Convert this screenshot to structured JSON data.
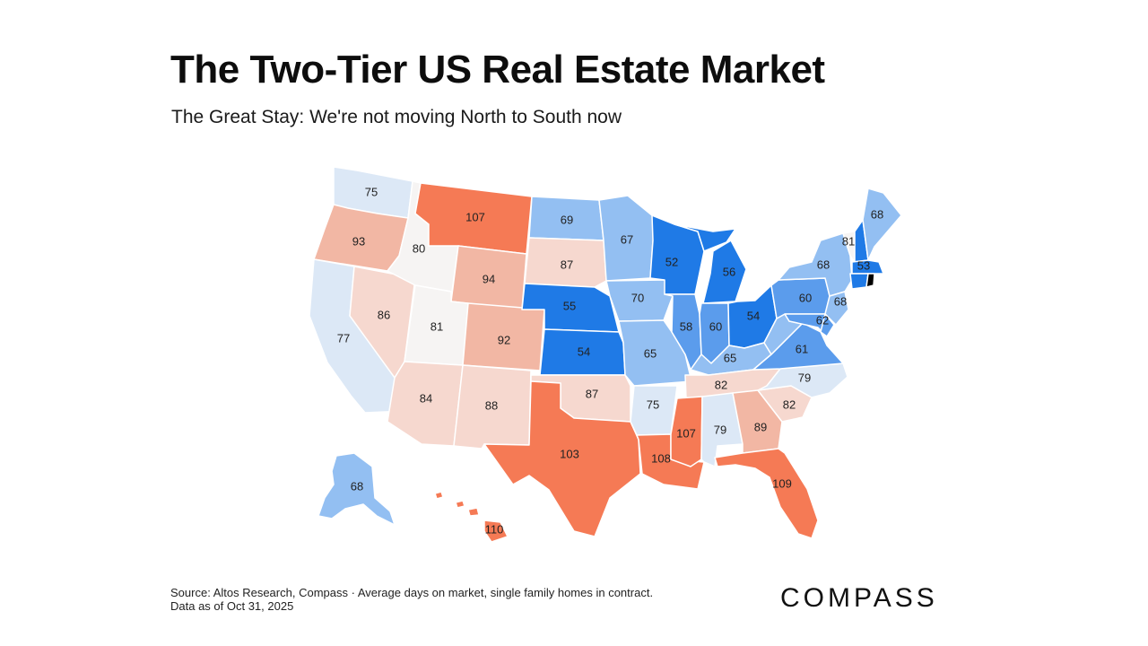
{
  "header": {
    "title": "The Two-Tier US Real Estate Market",
    "subtitle": "The Great Stay: We're not moving North to South now"
  },
  "footer": {
    "source_line1": "Source: Altos Research, Compass · Average days on market, single family homes in contract.",
    "source_line2": "Data as of Oct 31, 2025",
    "logo": "COMPASS"
  },
  "colors": {
    "dark_blue": "#1f7ae6",
    "mid_blue": "#5b9cec",
    "light_blue": "#93bff2",
    "pale_blue": "#dce8f6",
    "neutral": "#f6f4f3",
    "pale_red": "#f6d8cf",
    "light_red": "#f2b7a4",
    "dark_red": "#f57a55"
  },
  "map_data": {
    "type": "choropleth",
    "metric": "Average days on market",
    "states": [
      {
        "code": "WA",
        "value": 75
      },
      {
        "code": "OR",
        "value": 93
      },
      {
        "code": "CA",
        "value": 77
      },
      {
        "code": "NV",
        "value": 86
      },
      {
        "code": "ID",
        "value": 80
      },
      {
        "code": "MT",
        "value": 107
      },
      {
        "code": "WY",
        "value": 94
      },
      {
        "code": "UT",
        "value": 81
      },
      {
        "code": "CO",
        "value": 92
      },
      {
        "code": "AZ",
        "value": 84
      },
      {
        "code": "NM",
        "value": 88
      },
      {
        "code": "ND",
        "value": 69
      },
      {
        "code": "SD",
        "value": 87
      },
      {
        "code": "NE",
        "value": 55
      },
      {
        "code": "KS",
        "value": 54
      },
      {
        "code": "OK",
        "value": 87
      },
      {
        "code": "TX",
        "value": 103
      },
      {
        "code": "MN",
        "value": 67
      },
      {
        "code": "IA",
        "value": 70
      },
      {
        "code": "MO",
        "value": 65
      },
      {
        "code": "AR",
        "value": 75
      },
      {
        "code": "LA",
        "value": 108
      },
      {
        "code": "WI",
        "value": 52
      },
      {
        "code": "IL",
        "value": 58
      },
      {
        "code": "MI",
        "value": 56
      },
      {
        "code": "IN",
        "value": 60
      },
      {
        "code": "OH",
        "value": 54
      },
      {
        "code": "KY",
        "value": 65
      },
      {
        "code": "TN",
        "value": 82
      },
      {
        "code": "MS",
        "value": 107
      },
      {
        "code": "AL",
        "value": 79
      },
      {
        "code": "GA",
        "value": 89
      },
      {
        "code": "FL",
        "value": 109
      },
      {
        "code": "SC",
        "value": 82
      },
      {
        "code": "NC",
        "value": 79
      },
      {
        "code": "VA",
        "value": 61
      },
      {
        "code": "WV",
        "value": 65
      },
      {
        "code": "PA",
        "value": 60
      },
      {
        "code": "NY",
        "value": 68
      },
      {
        "code": "VT",
        "value": 81
      },
      {
        "code": "NH",
        "value": 53
      },
      {
        "code": "ME",
        "value": 68
      },
      {
        "code": "MA",
        "value": 53
      },
      {
        "code": "CT",
        "value": 53
      },
      {
        "code": "NJ",
        "value": 68
      },
      {
        "code": "MD",
        "value": 62
      },
      {
        "code": "DE",
        "value": 62
      },
      {
        "code": "AK",
        "value": 68
      },
      {
        "code": "HI",
        "value": 110
      }
    ]
  }
}
